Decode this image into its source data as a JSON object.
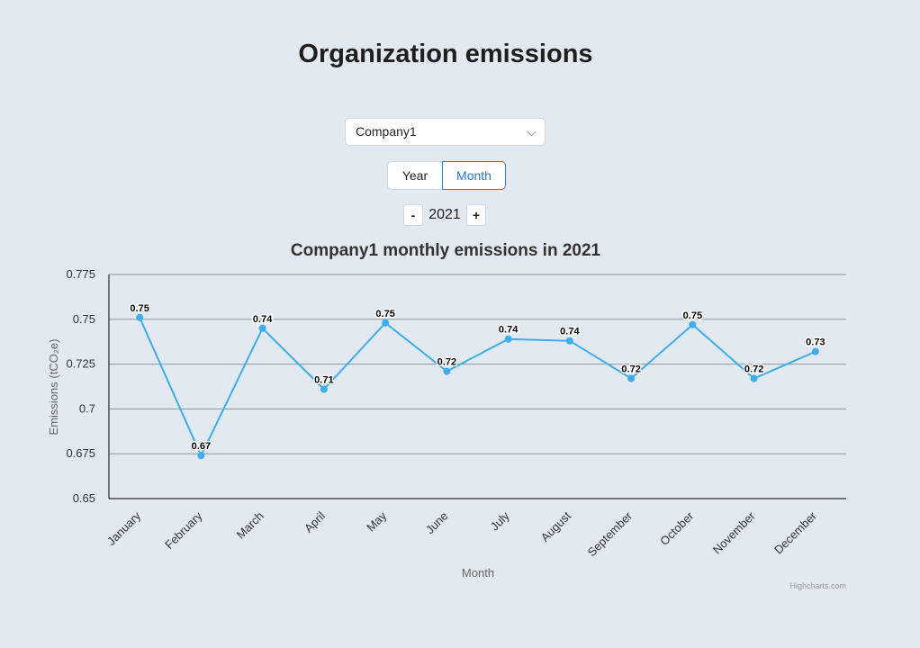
{
  "page": {
    "title": "Organization emissions"
  },
  "company_select": {
    "value": "Company1"
  },
  "period_toggle": {
    "year_label": "Year",
    "month_label": "Month",
    "active": "Month"
  },
  "year_stepper": {
    "minus_label": "-",
    "plus_label": "+",
    "value": "2021"
  },
  "chart_data": {
    "type": "line",
    "title": "Company1 monthly emissions in 2021",
    "xlabel": "Month",
    "ylabel": "Emissions (tCO₂e)",
    "categories": [
      "January",
      "February",
      "March",
      "April",
      "May",
      "June",
      "July",
      "August",
      "September",
      "October",
      "November",
      "December"
    ],
    "values": [
      0.751,
      0.674,
      0.745,
      0.711,
      0.748,
      0.721,
      0.739,
      0.738,
      0.717,
      0.747,
      0.717,
      0.732
    ],
    "data_labels": [
      "0.75",
      "0.67",
      "0.74",
      "0.71",
      "0.75",
      "0.72",
      "0.74",
      "0.74",
      "0.72",
      "0.75",
      "0.72",
      "0.73"
    ],
    "ylim": [
      0.65,
      0.775
    ],
    "yticks": [
      0.65,
      0.675,
      0.7,
      0.725,
      0.75,
      0.775
    ],
    "ytick_labels": [
      "0.65",
      "0.675",
      "0.7",
      "0.725",
      "0.75",
      "0.775"
    ],
    "grid": true,
    "legend": "none",
    "series_color": "#3daee9",
    "credits": "Highcharts.com"
  }
}
